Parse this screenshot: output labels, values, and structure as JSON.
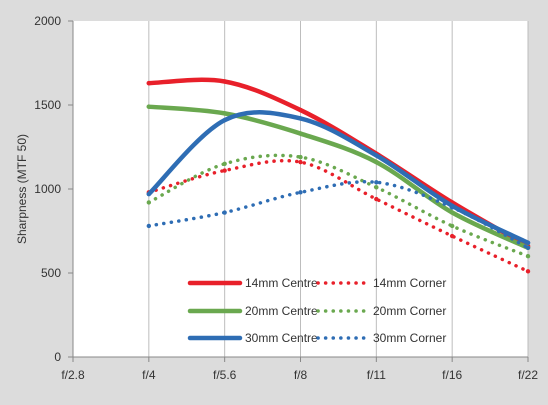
{
  "chart_data": {
    "type": "line",
    "title": "",
    "xlabel": "",
    "ylabel": "Sharpness  (MTF 50)",
    "categories": [
      "f/2.8",
      "f/4",
      "f/5.6",
      "f/8",
      "f/11",
      "f/16",
      "f/22"
    ],
    "ylim": [
      0,
      2000
    ],
    "yticks": [
      0,
      500,
      1000,
      1500,
      2000
    ],
    "grid": {
      "vertical": true,
      "horizontal": false
    },
    "legend_position": "bottom-center",
    "series": [
      {
        "name": "14mm Centre",
        "style": "solid",
        "color": "#e8202a",
        "points": [
          [
            1,
            1630
          ],
          [
            2,
            1640
          ],
          [
            3,
            1470
          ],
          [
            4,
            1210
          ],
          [
            5,
            920
          ],
          [
            6,
            660
          ]
        ]
      },
      {
        "name": "14mm Corner",
        "style": "dotted",
        "color": "#e8202a",
        "points": [
          [
            1,
            980
          ],
          [
            2,
            1110
          ],
          [
            3,
            1160
          ],
          [
            4,
            940
          ],
          [
            5,
            720
          ],
          [
            6,
            510
          ]
        ]
      },
      {
        "name": "20mm Centre",
        "style": "solid",
        "color": "#6aa84f",
        "points": [
          [
            1,
            1490
          ],
          [
            2,
            1450
          ],
          [
            3,
            1330
          ],
          [
            4,
            1160
          ],
          [
            5,
            860
          ],
          [
            6,
            650
          ]
        ]
      },
      {
        "name": "20mm Corner",
        "style": "dotted",
        "color": "#6aa84f",
        "points": [
          [
            1,
            920
          ],
          [
            2,
            1150
          ],
          [
            3,
            1190
          ],
          [
            4,
            1010
          ],
          [
            5,
            780
          ],
          [
            6,
            600
          ]
        ]
      },
      {
        "name": "30mm Centre",
        "style": "solid",
        "color": "#2e6db4",
        "points": [
          [
            1,
            970
          ],
          [
            2,
            1410
          ],
          [
            3,
            1420
          ],
          [
            4,
            1200
          ],
          [
            5,
            900
          ],
          [
            6,
            680
          ]
        ]
      },
      {
        "name": "30mm Corner",
        "style": "dotted",
        "color": "#2e6db4",
        "points": [
          [
            1,
            780
          ],
          [
            2,
            860
          ],
          [
            3,
            980
          ],
          [
            4,
            1040
          ],
          [
            5,
            890
          ],
          [
            6,
            650
          ]
        ]
      }
    ]
  }
}
